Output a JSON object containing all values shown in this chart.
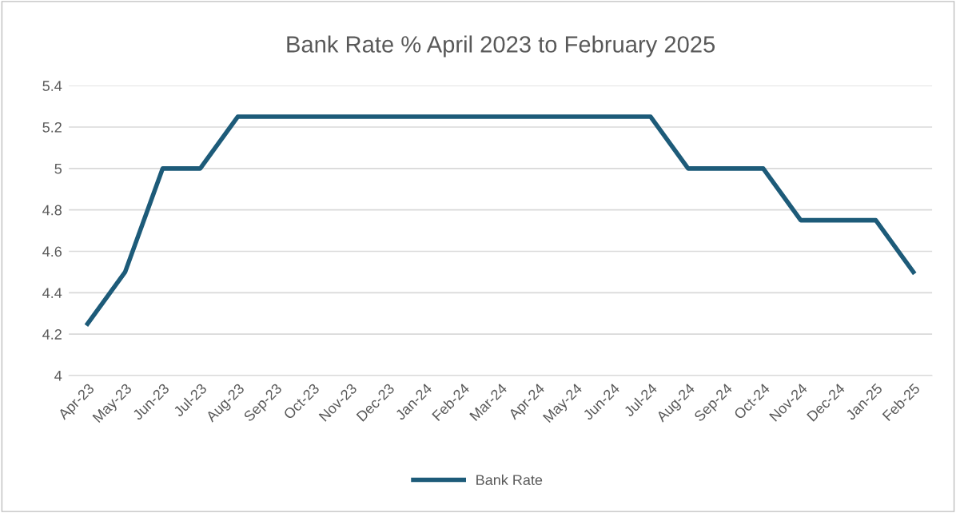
{
  "chart_data": {
    "type": "line",
    "title": "Bank Rate % April 2023 to February 2025",
    "categories": [
      "Apr-23",
      "May-23",
      "Jun-23",
      "Jul-23",
      "Aug-23",
      "Sep-23",
      "Oct-23",
      "Nov-23",
      "Dec-23",
      "Jan-24",
      "Feb-24",
      "Mar-24",
      "Apr-24",
      "May-24",
      "Jun-24",
      "Jul-24",
      "Aug-24",
      "Sep-24",
      "Oct-24",
      "Nov-24",
      "Dec-24",
      "Jan-25",
      "Feb-25"
    ],
    "series": [
      {
        "name": "Bank Rate",
        "color": "#1d5b79",
        "values": [
          4.25,
          4.5,
          5,
          5,
          5.25,
          5.25,
          5.25,
          5.25,
          5.25,
          5.25,
          5.25,
          5.25,
          5.25,
          5.25,
          5.25,
          5.25,
          5,
          5,
          5,
          4.75,
          4.75,
          4.75,
          4.5
        ]
      }
    ],
    "ylim": [
      4,
      5.4
    ],
    "yticks": [
      4,
      4.2,
      4.4,
      4.6,
      4.8,
      5,
      5.2,
      5.4
    ],
    "grid": "y",
    "legend": "bottom",
    "marker": "none",
    "line_style": "solid"
  }
}
